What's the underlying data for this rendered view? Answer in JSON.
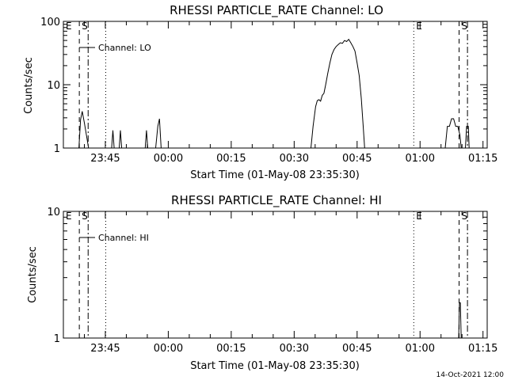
{
  "chart_data": [
    {
      "type": "line",
      "title": "RHESSI PARTICLE_RATE Channel: LO",
      "xlabel": "Start Time (01-May-08 23:35:30)",
      "ylabel": "Counts/sec",
      "yscale": "log",
      "x_units": "minutes after 23:35:30",
      "xlim": [
        -0.5,
        100.5
      ],
      "ylim": [
        1,
        100
      ],
      "x_ticks": [
        {
          "label": "23:45",
          "x": 9.5
        },
        {
          "label": "00:00",
          "x": 24.5
        },
        {
          "label": "00:15",
          "x": 39.5
        },
        {
          "label": "00:30",
          "x": 54.5
        },
        {
          "label": "00:45",
          "x": 69.5
        },
        {
          "label": "01:00",
          "x": 84.5
        },
        {
          "label": "01:15",
          "x": 99.5
        }
      ],
      "y_ticks": [
        {
          "label": "1",
          "y": 1
        },
        {
          "label": "10",
          "y": 10
        },
        {
          "label": "100",
          "y": 100
        }
      ],
      "grid": false,
      "legend": {
        "position": "top-left",
        "entries": [
          "Channel: LO"
        ]
      },
      "series": [
        {
          "name": "Channel: LO",
          "points": [
            [
              3.2,
              1
            ],
            [
              3.6,
              2.8
            ],
            [
              4.0,
              3.8
            ],
            [
              4.5,
              2.5
            ],
            [
              5.0,
              1.6
            ],
            [
              5.5,
              1
            ],
            [
              11.0,
              1
            ],
            [
              11.3,
              1.9
            ],
            [
              11.6,
              1
            ],
            [
              12.8,
              1
            ],
            [
              13.1,
              1.9
            ],
            [
              13.4,
              1
            ],
            [
              19.0,
              1
            ],
            [
              19.3,
              1.9
            ],
            [
              19.6,
              1
            ],
            [
              21.5,
              1
            ],
            [
              22.0,
              2.2
            ],
            [
              22.4,
              2.9
            ],
            [
              22.8,
              1
            ],
            [
              58.5,
              1
            ],
            [
              59.0,
              2.2
            ],
            [
              59.6,
              4.5
            ],
            [
              60.0,
              5.6
            ],
            [
              60.4,
              5.8
            ],
            [
              60.8,
              5.5
            ],
            [
              61.2,
              6.8
            ],
            [
              61.6,
              7.3
            ],
            [
              62.0,
              10
            ],
            [
              62.5,
              15
            ],
            [
              63.0,
              22
            ],
            [
              63.5,
              30
            ],
            [
              64.0,
              36
            ],
            [
              64.5,
              40
            ],
            [
              65.0,
              43
            ],
            [
              65.5,
              46
            ],
            [
              66.0,
              45
            ],
            [
              66.5,
              50
            ],
            [
              67.0,
              48
            ],
            [
              67.5,
              52
            ],
            [
              68.0,
              46
            ],
            [
              68.5,
              40
            ],
            [
              69.0,
              34
            ],
            [
              69.5,
              22
            ],
            [
              70.0,
              14
            ],
            [
              70.5,
              6
            ],
            [
              71.0,
              2
            ],
            [
              71.3,
              1
            ],
            [
              90.5,
              1
            ],
            [
              91.0,
              2.2
            ],
            [
              91.5,
              2.2
            ],
            [
              92.0,
              2.9
            ],
            [
              92.5,
              2.9
            ],
            [
              93.0,
              2.2
            ],
            [
              93.5,
              2.2
            ],
            [
              94.0,
              1.6
            ],
            [
              94.3,
              1
            ],
            [
              95.3,
              1
            ],
            [
              95.6,
              2.2
            ],
            [
              96.0,
              2.2
            ],
            [
              96.2,
              1
            ]
          ]
        }
      ],
      "markers": [
        {
          "label": "E",
          "x": -0.5,
          "style": "none"
        },
        {
          "label": "S",
          "x": 3.3,
          "style": "dashed"
        },
        {
          "label": "",
          "x": 5.4,
          "style": "dashdot"
        },
        {
          "label": "",
          "x": 9.6,
          "style": "dotted"
        },
        {
          "label": "E",
          "x": 83.0,
          "style": "dotted"
        },
        {
          "label": "S",
          "x": 93.8,
          "style": "dashed"
        },
        {
          "label": "",
          "x": 95.8,
          "style": "dashdot"
        }
      ]
    },
    {
      "type": "line",
      "title": "RHESSI PARTICLE_RATE Channel: HI",
      "xlabel": "Start Time (01-May-08 23:35:30)",
      "ylabel": "Counts/sec",
      "yscale": "log",
      "x_units": "minutes after 23:35:30",
      "xlim": [
        -0.5,
        100.5
      ],
      "ylim": [
        1,
        10
      ],
      "x_ticks": [
        {
          "label": "23:45",
          "x": 9.5
        },
        {
          "label": "00:00",
          "x": 24.5
        },
        {
          "label": "00:15",
          "x": 39.5
        },
        {
          "label": "00:30",
          "x": 54.5
        },
        {
          "label": "00:45",
          "x": 69.5
        },
        {
          "label": "01:00",
          "x": 84.5
        },
        {
          "label": "01:15",
          "x": 99.5
        }
      ],
      "y_ticks": [
        {
          "label": "1",
          "y": 1
        },
        {
          "label": "10",
          "y": 10
        }
      ],
      "grid": false,
      "legend": {
        "position": "top-left",
        "entries": [
          "Channel: HI"
        ]
      },
      "series": [
        {
          "name": "Channel: HI",
          "points": [
            [
              93.7,
              1
            ],
            [
              93.9,
              1.9
            ],
            [
              94.1,
              1.9
            ],
            [
              94.3,
              1
            ]
          ]
        }
      ],
      "markers": [
        {
          "label": "E",
          "x": -0.5,
          "style": "none"
        },
        {
          "label": "S",
          "x": 3.3,
          "style": "dashed"
        },
        {
          "label": "",
          "x": 5.4,
          "style": "dashdot"
        },
        {
          "label": "",
          "x": 9.6,
          "style": "dotted"
        },
        {
          "label": "E",
          "x": 83.0,
          "style": "dotted"
        },
        {
          "label": "S",
          "x": 93.8,
          "style": "dashed"
        },
        {
          "label": "",
          "x": 95.8,
          "style": "dashdot"
        }
      ]
    }
  ],
  "footer": {
    "timestamp": "14-Oct-2021 12:00"
  }
}
